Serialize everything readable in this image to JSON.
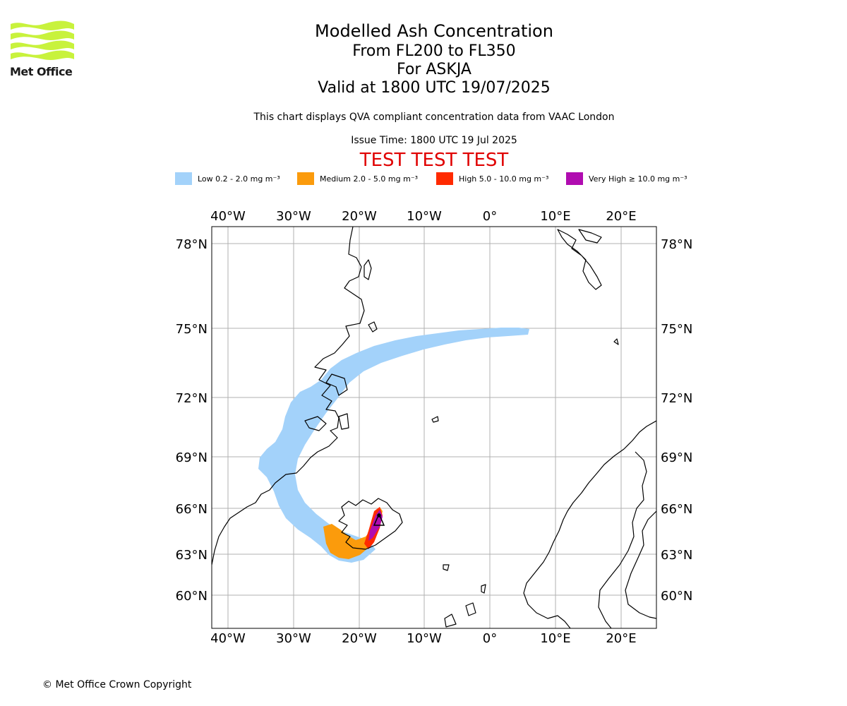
{
  "logo": {
    "name": "Met Office"
  },
  "title": {
    "line1": "Modelled Ash Concentration",
    "line2": "From FL200 to FL350",
    "line3": "For ASKJA",
    "line4": "Valid at 1800 UTC 19/07/2025"
  },
  "subtitle": "This chart displays QVA compliant concentration data from VAAC London",
  "issue_time": "Issue Time: 1800 UTC 19 Jul 2025",
  "test_banner": "TEST TEST TEST",
  "legend": [
    {
      "label": "Low 0.2 - 2.0 mg m⁻³",
      "color": "#a3d2fa"
    },
    {
      "label": "Medium 2.0 - 5.0 mg m⁻³",
      "color": "#fb9b0c"
    },
    {
      "label": "High 5.0 - 10.0 mg m⁻³",
      "color": "#ff2a00"
    },
    {
      "label": "Very High ≥ 10.0 mg m⁻³",
      "color": "#b00cb0"
    }
  ],
  "map": {
    "lon_ticks": [
      "40°W",
      "30°W",
      "20°W",
      "10°W",
      "0°",
      "10°E",
      "20°E"
    ],
    "lat_ticks": [
      "78°N",
      "75°N",
      "72°N",
      "69°N",
      "66°N",
      "63°N",
      "60°N"
    ]
  },
  "copyright": "© Met Office Crown Copyright"
}
